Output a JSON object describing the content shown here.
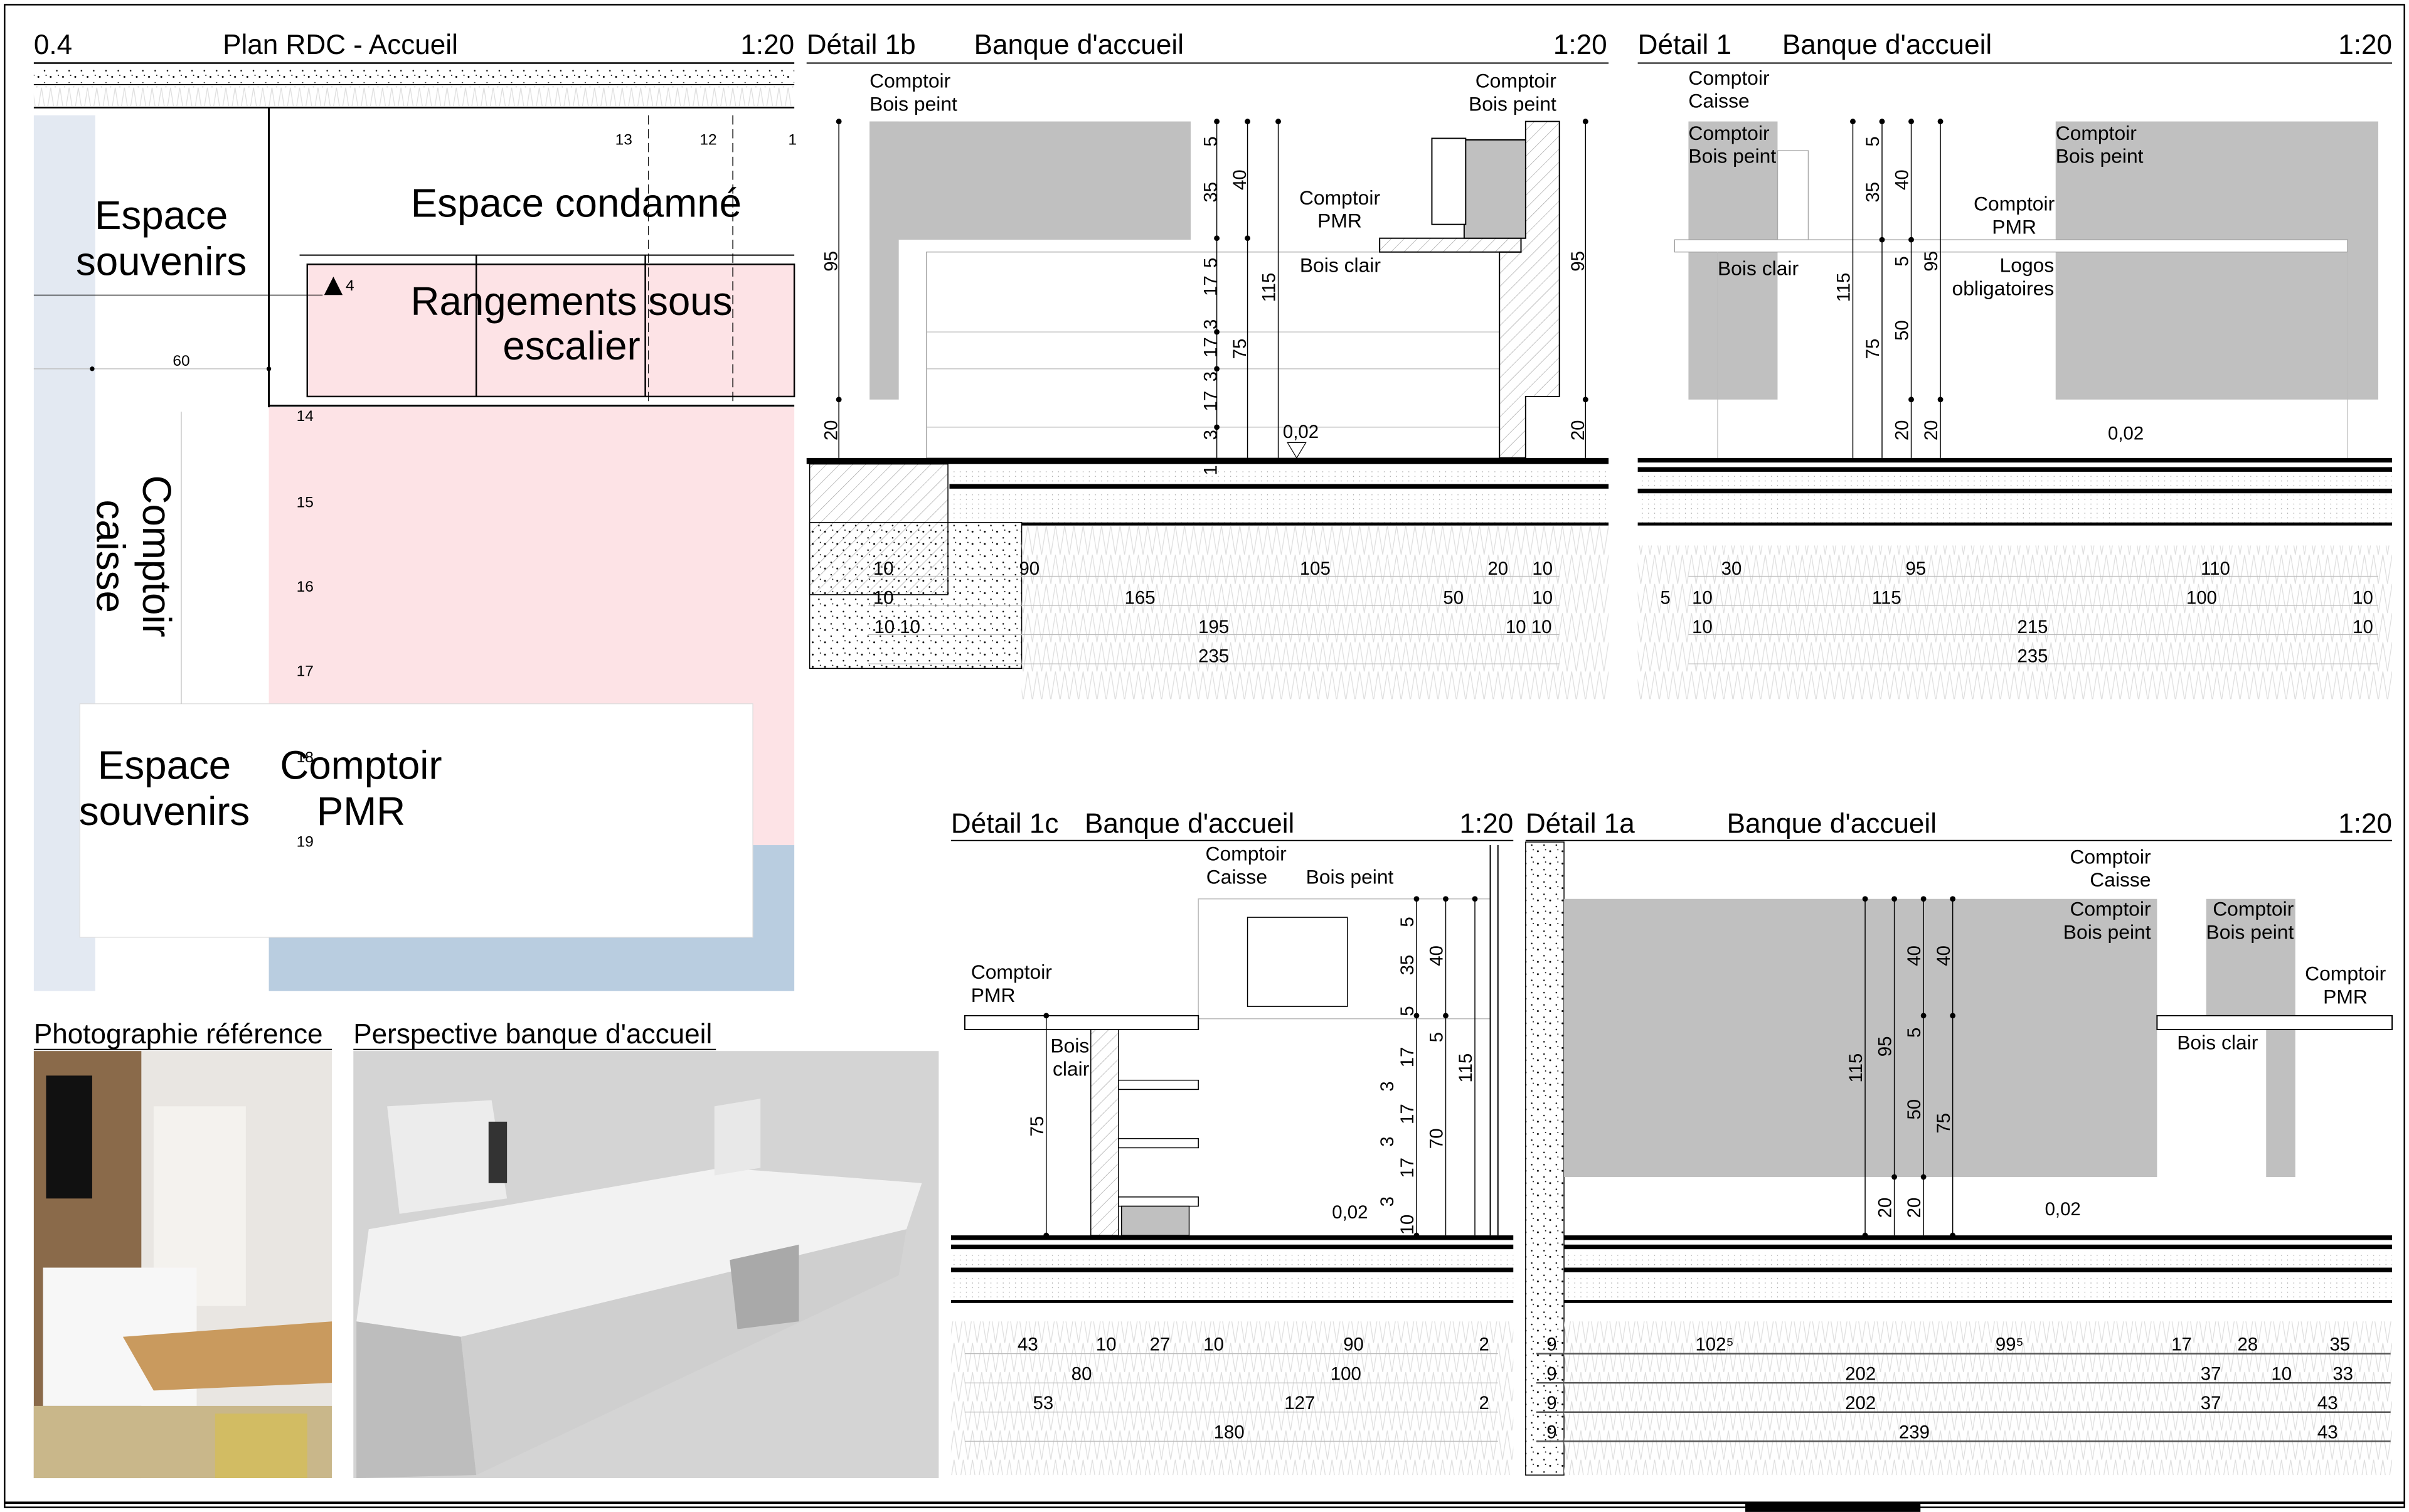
{
  "plan": {
    "number": "0.4",
    "title": "Plan RDC - Accueil",
    "scale": "1:20",
    "rooms": {
      "souvenirs_top": [
        "Espace",
        "souvenirs"
      ],
      "condamne": "Espace condamné",
      "rangements": [
        "Rangements sous",
        "escalier"
      ],
      "caisse": [
        "Comptoir",
        "caisse"
      ],
      "souvenirs_bottom": [
        "Espace",
        "souvenirs"
      ],
      "pmr": [
        "Comptoir",
        "PMR"
      ]
    },
    "numbers": [
      "13",
      "12",
      "1",
      "4",
      "60",
      "14",
      "15",
      "16",
      "17",
      "18",
      "19"
    ],
    "colors": {
      "pink": "#fde3e6",
      "light_blue": "#e3e9f2",
      "blue": "#b9cde0"
    }
  },
  "photo": {
    "title": "Photographie référence"
  },
  "perspective": {
    "title": "Perspective banque d'accueil"
  },
  "d1b": {
    "number": "Détail 1b",
    "title": "Banque d'accueil",
    "scale": "1:20",
    "labels": [
      "Comptoir",
      "Bois peint",
      "Comptoir",
      "Bois peint",
      "Comptoir",
      "PMR",
      "Bois clair",
      "0,02"
    ],
    "vdims": [
      "95",
      "20",
      "5",
      "35",
      "40",
      "5",
      "17",
      "115",
      "3",
      "17",
      "75",
      "3",
      "17",
      "3",
      "1",
      "95",
      "20"
    ],
    "hdims": [
      "10",
      "90",
      "105",
      "20",
      "10",
      "10",
      "165",
      "50",
      "10",
      "10 10",
      "195",
      "10 10",
      "235"
    ]
  },
  "d1": {
    "number": "Détail 1",
    "title": "Banque d'accueil",
    "scale": "1:20",
    "labels": [
      "Comptoir",
      "Caisse",
      "Comptoir",
      "Bois peint",
      "Comptoir",
      "Bois peint",
      "Comptoir",
      "PMR",
      "Bois clair",
      "Logos",
      "obligatoires",
      "0,02"
    ],
    "vdims": [
      "5",
      "35",
      "40",
      "115",
      "5",
      "95",
      "75",
      "50",
      "20",
      "20"
    ],
    "hdims": [
      "30",
      "95",
      "110",
      "5",
      "10",
      "115",
      "100",
      "10",
      "10",
      "215",
      "10",
      "235"
    ]
  },
  "d1c": {
    "number": "Détail 1c",
    "title": "Banque d'accueil",
    "scale": "1:20",
    "labels": [
      "Comptoir",
      "Caisse",
      "Bois peint",
      "Comptoir",
      "PMR",
      "Bois",
      "clair",
      "0,02"
    ],
    "vdims": [
      "5",
      "35",
      "40",
      "5",
      "5",
      "17",
      "115",
      "3",
      "17",
      "3",
      "17",
      "70",
      "75",
      "3",
      "10"
    ],
    "hdims": [
      "43",
      "10",
      "27",
      "10",
      "90",
      "2",
      "80",
      "100",
      "53",
      "127",
      "2",
      "180"
    ]
  },
  "d1a": {
    "number": "Détail 1a",
    "title": "Banque d'accueil",
    "scale": "1:20",
    "labels": [
      "Comptoir",
      "Caisse",
      "Comptoir",
      "Bois peint",
      "Comptoir",
      "Bois peint",
      "Comptoir",
      "PMR",
      "Bois clair",
      "0,02"
    ],
    "vdims": [
      "115",
      "95",
      "40",
      "40",
      "5",
      "50",
      "75",
      "20",
      "20"
    ],
    "hdims": [
      "9",
      "9",
      "9",
      "9",
      "102⁵",
      "99⁵",
      "17",
      "28",
      "35",
      "202",
      "37",
      "10",
      "33",
      "202",
      "37",
      "43",
      "239",
      "43"
    ]
  },
  "colors": {
    "panel_gray": "#c0c0c0",
    "render_gray": "#d4d4d4"
  }
}
